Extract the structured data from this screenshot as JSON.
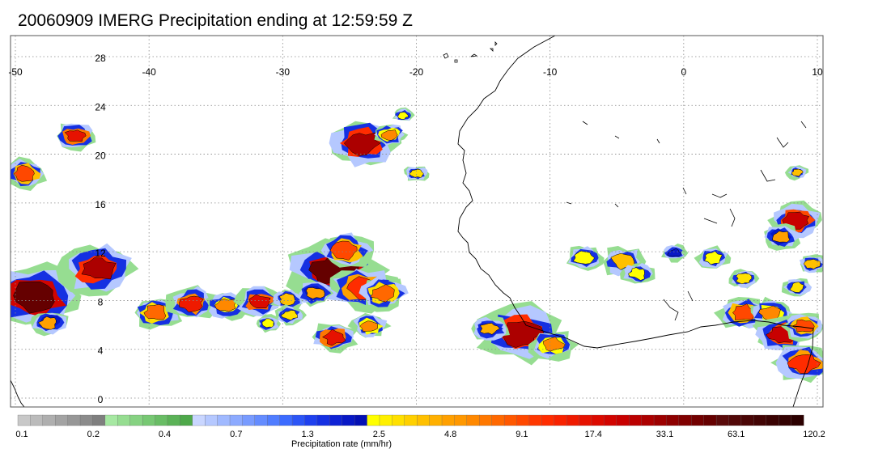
{
  "title": "20060909 IMERG Precipitation ending at 12:59:59 Z",
  "map": {
    "lon_labels": [
      "-50",
      "-40",
      "-30",
      "-20",
      "-10",
      "0",
      "10"
    ],
    "lon_values": [
      -50,
      -40,
      -30,
      -20,
      -10,
      0,
      10
    ],
    "lat_labels": [
      "28",
      "24",
      "20",
      "16",
      "12",
      "8",
      "4",
      "0"
    ],
    "lat_values": [
      28,
      24,
      20,
      16,
      12,
      8,
      4,
      0
    ],
    "lon_range": [
      -50,
      10
    ],
    "lat_range": [
      -0.5,
      30
    ],
    "grid": true,
    "gridline_style": "dotted",
    "coastline_color": "#000000"
  },
  "colorbar": {
    "label": "Precipitation rate (mm/hr)",
    "tick_labels": [
      "0.1",
      "0.2",
      "0.4",
      "0.7",
      "1.3",
      "2.5",
      "4.8",
      "9.1",
      "17.4",
      "33.1",
      "63.1",
      "120.2"
    ],
    "colors": [
      "#c8c8c8",
      "#bbbbbb",
      "#afafaf",
      "#a3a3a3",
      "#979797",
      "#8b8b8b",
      "#7f7f7f",
      "#a6e8a2",
      "#96dd91",
      "#86d282",
      "#77c873",
      "#69bd65",
      "#5bb257",
      "#4ea84a",
      "#c9d6ff",
      "#b5c8ff",
      "#a0b9ff",
      "#8caaff",
      "#789bff",
      "#648cff",
      "#507dff",
      "#3c6bff",
      "#2c55f6",
      "#1f40ee",
      "#1530e2",
      "#0e22d5",
      "#0818c5",
      "#0410b4",
      "#ffff00",
      "#fff000",
      "#ffe000",
      "#ffd000",
      "#ffc000",
      "#ffb000",
      "#ffa000",
      "#ff9800",
      "#ff8800",
      "#ff7800",
      "#ff6800",
      "#ff5800",
      "#ff4800",
      "#ff3800",
      "#ff2c00",
      "#f82200",
      "#ef1a00",
      "#e61200",
      "#dc0a00",
      "#d20400",
      "#c80000",
      "#bb0000",
      "#ac0000",
      "#9d0000",
      "#8e0000",
      "#800000",
      "#720000",
      "#650000",
      "#5a0a0a",
      "#520808",
      "#4a0606",
      "#420404",
      "#3a0202",
      "#330101",
      "#2c0000"
    ]
  },
  "precip_cells": [
    {
      "lon": -48.5,
      "lat": 8.4,
      "r": 2.3,
      "peak": 55
    },
    {
      "lon": -43.8,
      "lat": 10.6,
      "r": 1.8,
      "peak": 50
    },
    {
      "lon": -45.5,
      "lat": 21.5,
      "r": 1.0,
      "peak": 45
    },
    {
      "lon": -49.3,
      "lat": 18.4,
      "r": 1.1,
      "peak": 40
    },
    {
      "lon": -47.5,
      "lat": 6.2,
      "r": 0.9,
      "peak": 34
    },
    {
      "lon": -39.5,
      "lat": 7.0,
      "r": 1.2,
      "peak": 38
    },
    {
      "lon": -36.8,
      "lat": 7.8,
      "r": 1.2,
      "peak": 44
    },
    {
      "lon": -34.2,
      "lat": 7.6,
      "r": 1.0,
      "peak": 36
    },
    {
      "lon": -31.8,
      "lat": 7.9,
      "r": 1.1,
      "peak": 46
    },
    {
      "lon": -29.6,
      "lat": 8.1,
      "r": 0.8,
      "peak": 32
    },
    {
      "lon": -26.0,
      "lat": 10.5,
      "r": 2.3,
      "peak": 55
    },
    {
      "lon": -25.3,
      "lat": 12.1,
      "r": 1.3,
      "peak": 40
    },
    {
      "lon": -24.0,
      "lat": 9.0,
      "r": 1.6,
      "peak": 42
    },
    {
      "lon": -22.5,
      "lat": 8.6,
      "r": 1.2,
      "peak": 38
    },
    {
      "lon": -27.6,
      "lat": 8.6,
      "r": 0.9,
      "peak": 34
    },
    {
      "lon": -29.5,
      "lat": 6.8,
      "r": 0.7,
      "peak": 30
    },
    {
      "lon": -26.1,
      "lat": 5.0,
      "r": 1.1,
      "peak": 45
    },
    {
      "lon": -23.5,
      "lat": 5.9,
      "r": 0.9,
      "peak": 36
    },
    {
      "lon": -31.1,
      "lat": 6.1,
      "r": 0.6,
      "peak": 28
    },
    {
      "lon": -24.0,
      "lat": 20.9,
      "r": 1.7,
      "peak": 50
    },
    {
      "lon": -22.0,
      "lat": 21.6,
      "r": 0.8,
      "peak": 36
    },
    {
      "lon": -20.0,
      "lat": 18.4,
      "r": 0.6,
      "peak": 30
    },
    {
      "lon": -21.0,
      "lat": 23.2,
      "r": 0.5,
      "peak": 28
    },
    {
      "lon": -12.2,
      "lat": 5.3,
      "r": 2.0,
      "peak": 50
    },
    {
      "lon": -9.8,
      "lat": 4.4,
      "r": 1.1,
      "peak": 36
    },
    {
      "lon": -14.5,
      "lat": 5.7,
      "r": 0.9,
      "peak": 33
    },
    {
      "lon": -4.5,
      "lat": 11.2,
      "r": 1.1,
      "peak": 32
    },
    {
      "lon": -7.5,
      "lat": 11.5,
      "r": 0.9,
      "peak": 28
    },
    {
      "lon": -3.4,
      "lat": 10.2,
      "r": 0.8,
      "peak": 28
    },
    {
      "lon": -0.7,
      "lat": 11.9,
      "r": 0.6,
      "peak": 26
    },
    {
      "lon": 2.2,
      "lat": 11.5,
      "r": 0.8,
      "peak": 28
    },
    {
      "lon": 4.5,
      "lat": 7.0,
      "r": 1.2,
      "peak": 40
    },
    {
      "lon": 6.5,
      "lat": 7.0,
      "r": 1.0,
      "peak": 36
    },
    {
      "lon": 7.3,
      "lat": 5.2,
      "r": 1.3,
      "peak": 48
    },
    {
      "lon": 9.0,
      "lat": 5.9,
      "r": 1.0,
      "peak": 40
    },
    {
      "lon": 9.0,
      "lat": 2.9,
      "r": 1.4,
      "peak": 42
    },
    {
      "lon": 8.5,
      "lat": 14.6,
      "r": 1.3,
      "peak": 48
    },
    {
      "lon": 7.3,
      "lat": 13.2,
      "r": 0.9,
      "peak": 34
    },
    {
      "lon": 9.6,
      "lat": 11.0,
      "r": 0.7,
      "peak": 32
    },
    {
      "lon": 4.5,
      "lat": 9.8,
      "r": 0.7,
      "peak": 30
    },
    {
      "lon": 8.5,
      "lat": 18.5,
      "r": 0.5,
      "peak": 32
    },
    {
      "lon": 8.5,
      "lat": 9.1,
      "r": 0.7,
      "peak": 30
    }
  ]
}
